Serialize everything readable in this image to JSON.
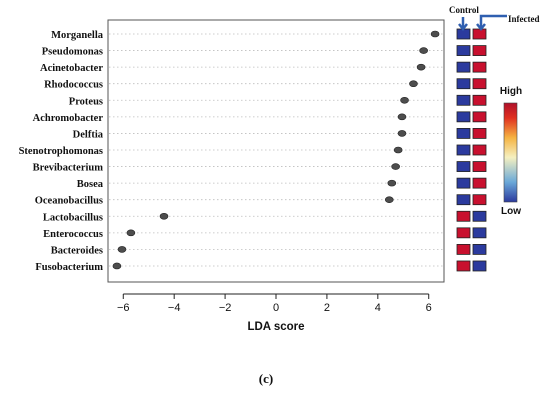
{
  "chart_data": {
    "type": "scatter",
    "title": "",
    "xlabel": "LDA score",
    "ylabel": "",
    "xlim": [
      -6.6,
      6.6
    ],
    "xticks": [
      "−6",
      "−4",
      "−2",
      "0",
      "2",
      "4",
      "6"
    ],
    "xtick_values": [
      -6,
      -4,
      -2,
      0,
      2,
      4,
      6
    ],
    "grid": "horizontal dotted",
    "taxa": [
      {
        "name": "Morganella",
        "lda": 6.25,
        "control": "low",
        "infected": "high"
      },
      {
        "name": "Pseudomonas",
        "lda": 5.8,
        "control": "low",
        "infected": "high"
      },
      {
        "name": "Acinetobacter",
        "lda": 5.7,
        "control": "low",
        "infected": "high"
      },
      {
        "name": "Rhodococcus",
        "lda": 5.4,
        "control": "low",
        "infected": "high"
      },
      {
        "name": "Proteus",
        "lda": 5.05,
        "control": "low",
        "infected": "high"
      },
      {
        "name": "Achromobacter",
        "lda": 4.95,
        "control": "low",
        "infected": "high"
      },
      {
        "name": "Delftia",
        "lda": 4.95,
        "control": "low",
        "infected": "high"
      },
      {
        "name": "Stenotrophomonas",
        "lda": 4.8,
        "control": "low",
        "infected": "high"
      },
      {
        "name": "Brevibacterium",
        "lda": 4.7,
        "control": "low",
        "infected": "high"
      },
      {
        "name": "Bosea",
        "lda": 4.55,
        "control": "low",
        "infected": "high"
      },
      {
        "name": "Oceanobacillus",
        "lda": 4.45,
        "control": "low",
        "infected": "high"
      },
      {
        "name": "Lactobacillus",
        "lda": -4.4,
        "control": "high",
        "infected": "low"
      },
      {
        "name": "Enterococcus",
        "lda": -5.7,
        "control": "high",
        "infected": "low"
      },
      {
        "name": "Bacteroides",
        "lda": -6.05,
        "control": "high",
        "infected": "low"
      },
      {
        "name": "Fusobacterium",
        "lda": -6.25,
        "control": "high",
        "infected": "low"
      }
    ],
    "groups": {
      "control": "Control",
      "infected": "Infected"
    },
    "colorbar": {
      "high_label": "High",
      "low_label": "Low"
    },
    "panel_label": "(c)"
  },
  "colors": {
    "high": "#c8102e",
    "low": "#2b3a9e",
    "dot": "#4d4d4d",
    "arrow": "#2f5fb0",
    "grid": "#bdbdbd",
    "scale": [
      "#2b3a9e",
      "#6aa8d8",
      "#f5f0c0",
      "#f5b342",
      "#e03020",
      "#b0102a"
    ]
  }
}
